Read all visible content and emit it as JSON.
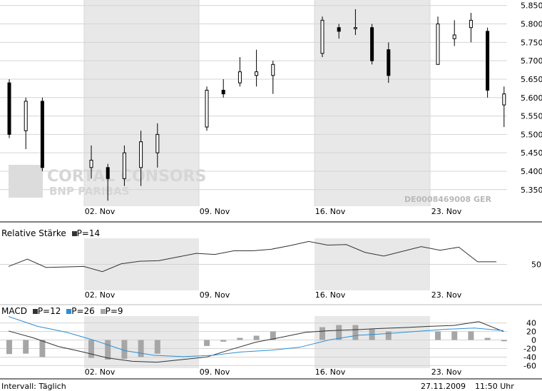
{
  "watermark": {
    "line1": "CORTAL CONSORS",
    "line2": "BNP PARIBAS"
  },
  "isin_label": "DE0008469008  GER",
  "rsi_label": "Relative Stärke",
  "rsi_param": "P=14",
  "macd_label": "MACD",
  "macd_params": [
    "P=12",
    "P=26",
    "P=9"
  ],
  "footer": {
    "interval": "Intervall: Täglich",
    "date": "27.11.2009",
    "time": "11:50 Uhr"
  },
  "colors": {
    "bg_band": "#e8e8e8",
    "grid": "#d4d4d4",
    "macd_signal": "#2a8fd6",
    "histogram": "#a6a6a6",
    "line": "#333333"
  },
  "chart_data": [
    {
      "type": "candlestick",
      "x_tick_labels": [
        "02. Nov",
        "09. Nov",
        "16. Nov",
        "23. Nov"
      ],
      "y_ticks": [
        "5.850",
        "5.800",
        "5.750",
        "5.700",
        "5.650",
        "5.600",
        "5.550",
        "5.500",
        "5.450",
        "5.400",
        "5.350"
      ],
      "ylim": [
        5.305,
        5.865
      ],
      "candles": [
        {
          "o": 5.64,
          "h": 5.65,
          "l": 5.49,
          "c": 5.5
        },
        {
          "o": 5.51,
          "h": 5.6,
          "l": 5.46,
          "c": 5.59
        },
        {
          "o": 5.59,
          "h": 5.6,
          "l": 5.4,
          "c": 5.41
        },
        {
          "o": 5.41,
          "h": 5.47,
          "l": 5.38,
          "c": 5.43
        },
        {
          "o": 5.41,
          "h": 5.42,
          "l": 5.32,
          "c": 5.38
        },
        {
          "o": 5.38,
          "h": 5.47,
          "l": 5.36,
          "c": 5.45
        },
        {
          "o": 5.41,
          "h": 5.51,
          "l": 5.36,
          "c": 5.48
        },
        {
          "o": 5.45,
          "h": 5.53,
          "l": 5.41,
          "c": 5.5
        },
        {
          "o": 5.52,
          "h": 5.63,
          "l": 5.51,
          "c": 5.62
        },
        {
          "o": 5.62,
          "h": 5.65,
          "l": 5.6,
          "c": 5.61
        },
        {
          "o": 5.64,
          "h": 5.71,
          "l": 5.63,
          "c": 5.67
        },
        {
          "o": 5.66,
          "h": 5.73,
          "l": 5.63,
          "c": 5.67
        },
        {
          "o": 5.66,
          "h": 5.7,
          "l": 5.61,
          "c": 5.69
        },
        {
          "o": 5.72,
          "h": 5.82,
          "l": 5.71,
          "c": 5.81
        },
        {
          "o": 5.79,
          "h": 5.8,
          "l": 5.76,
          "c": 5.78
        },
        {
          "o": 5.79,
          "h": 5.84,
          "l": 5.77,
          "c": 5.79
        },
        {
          "o": 5.79,
          "h": 5.8,
          "l": 5.69,
          "c": 5.7
        },
        {
          "o": 5.73,
          "h": 5.75,
          "l": 5.64,
          "c": 5.66
        },
        {
          "o": 5.69,
          "h": 5.82,
          "l": 5.69,
          "c": 5.8
        },
        {
          "o": 5.76,
          "h": 5.81,
          "l": 5.74,
          "c": 5.77
        },
        {
          "o": 5.79,
          "h": 5.83,
          "l": 5.75,
          "c": 5.81
        },
        {
          "o": 5.78,
          "h": 5.79,
          "l": 5.6,
          "c": 5.62
        },
        {
          "o": 5.58,
          "h": 5.63,
          "l": 5.52,
          "c": 5.61
        }
      ]
    },
    {
      "type": "line",
      "name": "Relative Stärke",
      "y_ticks": [
        "50"
      ],
      "ylim": [
        0,
        100
      ],
      "values": [
        46,
        60,
        44,
        45,
        46,
        36,
        51,
        56,
        57,
        64,
        71,
        69,
        76,
        76,
        79,
        86,
        94,
        87,
        88,
        73,
        66,
        75,
        84,
        77,
        83,
        55,
        55
      ]
    },
    {
      "type": "bar+line",
      "name": "MACD",
      "y_ticks": [
        "40",
        "20",
        "0",
        "-20",
        "-40",
        "-60"
      ],
      "ylim": [
        -66,
        56
      ],
      "series": [
        {
          "name": "P=12",
          "values": [
            21,
            5,
            -15,
            -28,
            -42,
            -50,
            -52,
            -46,
            -40,
            -22,
            -5,
            6,
            18,
            22,
            24,
            27,
            29,
            32,
            34,
            43,
            20
          ]
        },
        {
          "name": "P=26",
          "values": [
            55,
            32,
            18,
            -2,
            -25,
            -36,
            -39,
            -36,
            -28,
            -24,
            -17,
            0,
            11,
            15,
            20,
            25,
            28,
            22
          ]
        },
        {
          "name": "P=9",
          "values": [
            -33,
            -32,
            -40,
            -42,
            -46,
            -44,
            -40,
            -32,
            -14,
            -4,
            5,
            10,
            20,
            30,
            35,
            35,
            25,
            20,
            20,
            20,
            20,
            5,
            -3
          ]
        }
      ]
    }
  ]
}
